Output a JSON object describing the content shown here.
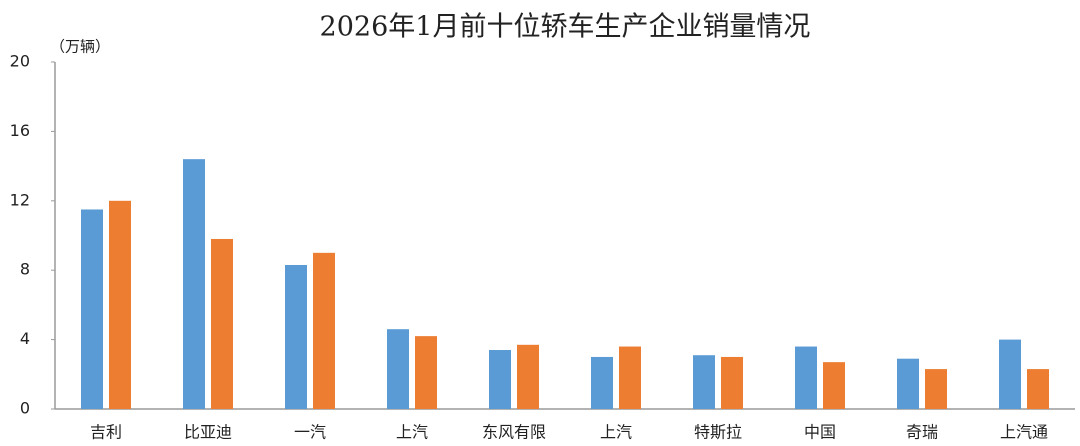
{
  "chart_data": {
    "type": "bar",
    "title": "2026年1月前十位轿车生产企业销量情况",
    "y_label": "（万辆）",
    "categories": [
      "吉利",
      "比亚迪",
      "一汽",
      "上汽",
      "东风有限",
      "上汽",
      "特斯拉",
      "中国",
      "奇瑞",
      "上汽通"
    ],
    "series": [
      {
        "color": "#5b9bd5",
        "values": [
          11.5,
          14.4,
          8.3,
          4.6,
          3.4,
          3.0,
          3.1,
          3.6,
          2.9,
          4.0
        ]
      },
      {
        "color": "#ed7d31",
        "values": [
          12.0,
          9.8,
          9.0,
          4.2,
          3.7,
          3.6,
          3.0,
          2.7,
          2.3,
          2.3
        ]
      }
    ],
    "ylim": [
      0,
      20
    ],
    "yticks": [
      0,
      4,
      8,
      12,
      16,
      20
    ],
    "grid": false
  }
}
